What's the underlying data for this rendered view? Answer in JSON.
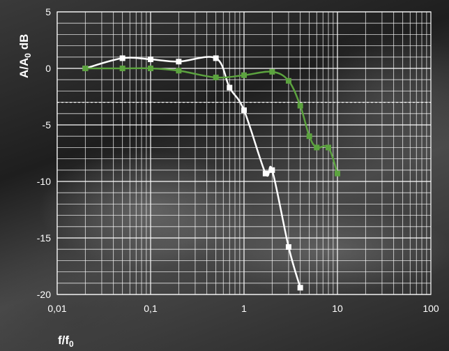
{
  "chart_data": {
    "type": "line",
    "xscale": "log",
    "xlim": [
      0.01,
      100
    ],
    "ylim": [
      -20,
      5
    ],
    "grid": true,
    "ylabel": {
      "base": "A/A",
      "sub": "0",
      "suffix": " dB"
    },
    "xlabel": {
      "base": "f/f",
      "sub": "0"
    },
    "x_ticks": [
      "0,01",
      "0,1",
      "1",
      "10",
      "100"
    ],
    "y_ticks": [
      "5",
      "0",
      "-5",
      "-10",
      "-15",
      "-20"
    ],
    "reference_line": {
      "y": -3,
      "style": "dashed"
    },
    "series": [
      {
        "color": "#ffffff",
        "x": [
          0.02,
          0.05,
          0.1,
          0.2,
          0.5,
          0.7,
          1.0,
          1.7,
          2.0,
          3.0,
          4.0
        ],
        "y": [
          0,
          0.9,
          0.8,
          0.6,
          0.9,
          -1.7,
          -3.7,
          -9.3,
          -9.0,
          -15.8,
          -19.4
        ]
      },
      {
        "color": "#5ca33f",
        "x": [
          0.02,
          0.05,
          0.1,
          0.2,
          0.5,
          1.0,
          2.0,
          3.0,
          4.0,
          5.0,
          6.0,
          8.0,
          10.0
        ],
        "y": [
          0,
          0,
          0,
          -0.2,
          -0.8,
          -0.6,
          -0.3,
          -1.1,
          -3.3,
          -6.0,
          -7.0,
          -7.0,
          -9.3
        ]
      }
    ]
  }
}
